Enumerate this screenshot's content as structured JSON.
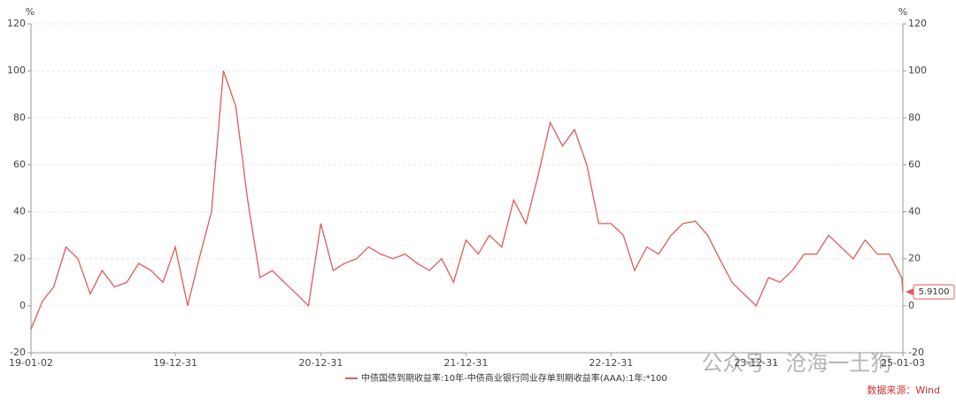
{
  "chart_data": {
    "type": "line",
    "y_unit": "%",
    "y2_unit": "%",
    "x": [
      "19-01-02",
      "19-01-31",
      "19-02-28",
      "19-03-31",
      "19-04-30",
      "19-05-31",
      "19-06-30",
      "19-07-31",
      "19-08-31",
      "19-09-30",
      "19-10-31",
      "19-11-30",
      "19-12-31",
      "20-01-31",
      "20-02-29",
      "20-03-31",
      "20-04-30",
      "20-05-31",
      "20-06-30",
      "20-07-31",
      "20-08-31",
      "20-09-30",
      "20-10-31",
      "20-11-30",
      "20-12-31",
      "21-01-31",
      "21-02-28",
      "21-03-31",
      "21-04-30",
      "21-05-31",
      "21-06-30",
      "21-07-31",
      "21-08-31",
      "21-09-30",
      "21-10-31",
      "21-11-30",
      "21-12-31",
      "22-01-31",
      "22-02-28",
      "22-03-31",
      "22-04-30",
      "22-05-31",
      "22-06-30",
      "22-07-31",
      "22-08-31",
      "22-09-30",
      "22-10-31",
      "22-11-30",
      "22-12-31",
      "23-01-31",
      "23-02-28",
      "23-03-31",
      "23-04-30",
      "23-05-31",
      "23-06-30",
      "23-07-31",
      "23-08-31",
      "23-09-30",
      "23-10-31",
      "23-11-30",
      "23-12-31",
      "24-01-31",
      "24-02-29",
      "24-03-31",
      "24-04-30",
      "24-05-31",
      "24-06-30",
      "24-07-31",
      "24-08-31",
      "24-09-30",
      "24-10-31",
      "24-11-30",
      "24-12-31",
      "25-01-03"
    ],
    "series": [
      {
        "name": "中债国债到期收益率:10年-中债商业银行同业存单到期收益率(AAA):1年:*100",
        "color": "#e05b5b",
        "values": [
          -10,
          2,
          8,
          25,
          20,
          5,
          15,
          8,
          10,
          18,
          15,
          10,
          25,
          0,
          20,
          40,
          100,
          85,
          45,
          12,
          15,
          10,
          5,
          0,
          35,
          15,
          18,
          20,
          25,
          22,
          20,
          22,
          18,
          15,
          20,
          10,
          28,
          22,
          30,
          25,
          45,
          35,
          55,
          78,
          68,
          75,
          60,
          35,
          35,
          30,
          15,
          25,
          22,
          30,
          35,
          36,
          30,
          20,
          10,
          5,
          0,
          12,
          10,
          15,
          22,
          22,
          30,
          25,
          20,
          28,
          22,
          22,
          12,
          5.91
        ],
        "value_labels": [
          null,
          null,
          null,
          null,
          null,
          null,
          null,
          null,
          null,
          null,
          null,
          null,
          null,
          null,
          null,
          null,
          null,
          null,
          null,
          null,
          null,
          null,
          null,
          null,
          null,
          null,
          null,
          null,
          null,
          null,
          null,
          null,
          null,
          null,
          null,
          null,
          null,
          null,
          null,
          null,
          null,
          null,
          null,
          null,
          null,
          null,
          null,
          null,
          null,
          null,
          null,
          null,
          null,
          null,
          null,
          null,
          null,
          null,
          null,
          null,
          null,
          null,
          null,
          null,
          null,
          null,
          null,
          null,
          null,
          null,
          null,
          null,
          null,
          "5.9100"
        ]
      }
    ],
    "xlim": [
      "19-01-02",
      "25-01-03"
    ],
    "xticks": [
      "19-01-02",
      "19-12-31",
      "20-12-31",
      "21-12-31",
      "22-12-31",
      "23-12-31",
      "25-01-03"
    ],
    "ylim": [
      -20,
      120
    ],
    "yticks": [
      -20,
      0,
      20,
      40,
      60,
      80,
      100,
      120
    ],
    "y2lim": [
      -20,
      120
    ],
    "y2ticks": [
      -20,
      0,
      20,
      40,
      60,
      80,
      100,
      120
    ],
    "grid": true,
    "source": "数据来源：Wind",
    "watermark": "公众号 · 沧海一土狗"
  }
}
